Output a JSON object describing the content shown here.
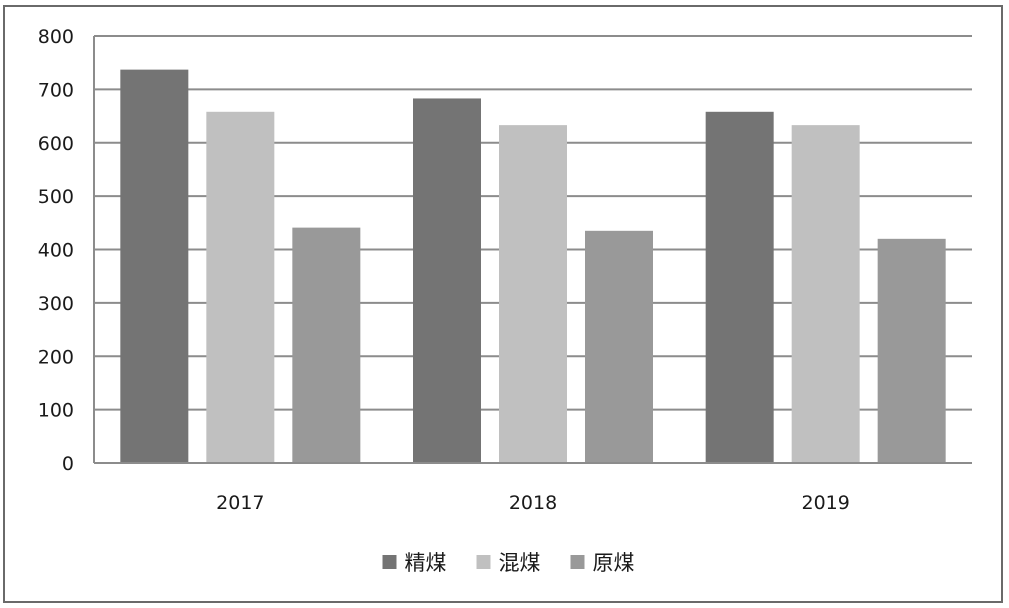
{
  "chart_data": {
    "type": "bar",
    "categories": [
      "2017",
      "2018",
      "2019"
    ],
    "series": [
      {
        "name": "精煤",
        "values": [
          737,
          683,
          658
        ],
        "color": "#747474"
      },
      {
        "name": "混煤",
        "values": [
          658,
          633,
          633
        ],
        "color": "#c0c0c0"
      },
      {
        "name": "原煤",
        "values": [
          441,
          435,
          420
        ],
        "color": "#999999"
      }
    ],
    "title": "",
    "xlabel": "",
    "ylabel": "",
    "ylim": [
      0,
      800
    ],
    "yticks": [
      "0",
      "100",
      "200",
      "300",
      "400",
      "500",
      "600",
      "700",
      "800"
    ],
    "grid": true,
    "legend_position": "bottom-center",
    "colors": {
      "gridline": "#8c8c8c",
      "axis": "#8c8c8c",
      "border": "#6a6a6a",
      "text": "#1a1a1a"
    }
  }
}
